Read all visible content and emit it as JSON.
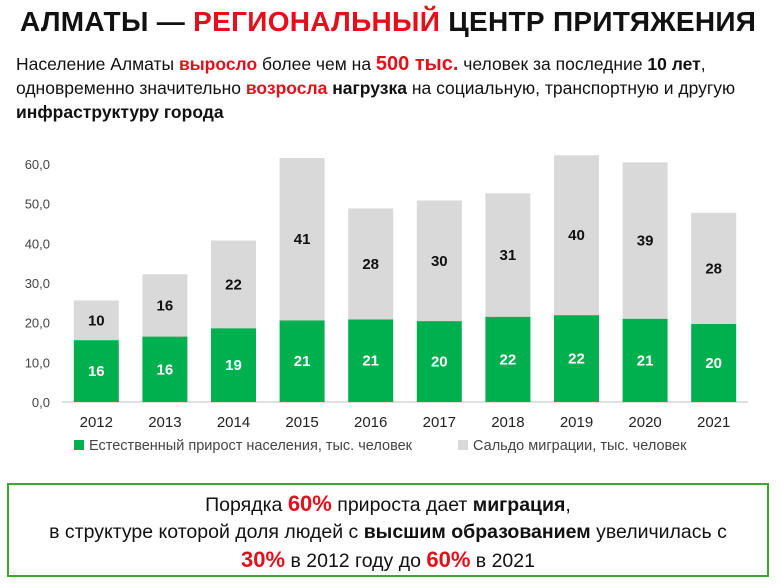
{
  "header": {
    "title_part1": "АЛМАТЫ — ",
    "title_part2": "РЕГИОНАЛЬНЫЙ",
    "title_part3": " ЦЕНТР ПРИТЯЖЕНИЯ"
  },
  "subtitle": {
    "s1": "Население Алматы ",
    "s2": "выросло",
    "s3": " более чем на ",
    "s4": "500 тыс.",
    "s5": " человек за последние ",
    "s6": "10 лет",
    "s7": ", одновременно значительно ",
    "s8": "возросла",
    "s9": " ",
    "s10": "нагрузка",
    "s11": " на социальную, транспортную и другую ",
    "s12": "инфраструктуру города"
  },
  "chart_data": {
    "type": "bar",
    "stacked": true,
    "categories": [
      "2012",
      "2013",
      "2014",
      "2015",
      "2016",
      "2017",
      "2018",
      "2019",
      "2020",
      "2021"
    ],
    "series": [
      {
        "name": "Естественный прирост населения, тыс. человек",
        "color": "#00b04f",
        "values": [
          15.6,
          16.5,
          18.6,
          20.6,
          20.8,
          20.4,
          21.5,
          21.9,
          21.0,
          19.7
        ],
        "labels": [
          "16",
          "16",
          "19",
          "21",
          "21",
          "20",
          "22",
          "22",
          "21",
          "20"
        ]
      },
      {
        "name": "Сальдо миграции, тыс. человек",
        "color": "#d9d9d9",
        "values": [
          10.0,
          15.7,
          22.1,
          40.9,
          28.0,
          30.4,
          31.1,
          40.3,
          39.4,
          28.0
        ],
        "labels": [
          "10",
          "16",
          "22",
          "41",
          "28",
          "30",
          "31",
          "40",
          "39",
          "28"
        ]
      }
    ],
    "yticks": [
      "0,0",
      "10,0",
      "20,0",
      "30,0",
      "40,0",
      "50,0",
      "60,0"
    ],
    "ylim": [
      0,
      60
    ],
    "grid": false,
    "legend_position": "bottom"
  },
  "callout": {
    "c1": "Порядка ",
    "c2": "60%",
    "c3": " прироста дает ",
    "c4": "миграция",
    "c5": ",",
    "c6": "в структуре которой доля людей с ",
    "c7": "высшим образованием",
    "c8": " увеличилась с",
    "c9": "30%",
    "c10": " в 2012 году до ",
    "c11": "60%",
    "c12": " в 2021"
  },
  "colors": {
    "accent_red": "#e3101b",
    "box_border": "#3fa535"
  }
}
